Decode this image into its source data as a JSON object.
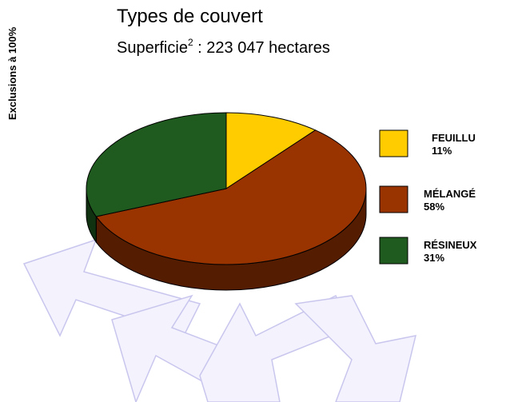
{
  "chart_data": {
    "type": "pie3d",
    "title": "Types de couvert",
    "subtitle": [
      "Superficie",
      "2",
      " : 223 047 hectares"
    ],
    "side_label": "Exclusions à 100%",
    "categories": [
      "FEUILLU",
      "MÉLANGÉ",
      "RÉSINEUX"
    ],
    "values": [
      11,
      58,
      31
    ],
    "value_labels": [
      "11%",
      "58%",
      "31%"
    ],
    "colors": [
      "#ffcc00",
      "#993300",
      "#1f5a1f"
    ]
  }
}
